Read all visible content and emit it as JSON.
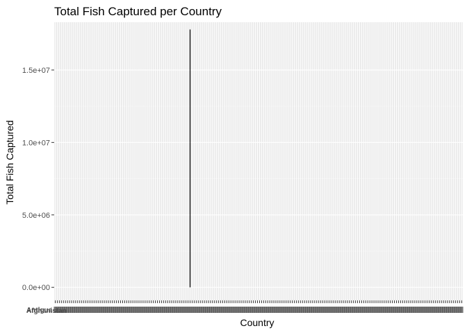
{
  "chart_data": {
    "type": "bar",
    "title": "Total Fish Captured per Country",
    "xlabel": "Country",
    "ylabel": "Total Fish Captured",
    "ylim": [
      -900000,
      18300000
    ],
    "y_ticks": [
      0,
      5000000,
      10000000,
      15000000
    ],
    "y_tick_labels": [
      "0.0e+00",
      "5.0e+06",
      "1.0e+07",
      "1.5e+07"
    ],
    "grid": true,
    "legend": "none",
    "category_count": 200,
    "visible_category_labels": [
      "Afghanistan",
      "Antigua"
    ],
    "highlighted_bar": {
      "category_index": 66,
      "value": 17800000
    },
    "colors": {
      "panel_background": "#ebebeb",
      "grid_major": "#ffffff",
      "grid_minor": "#f5f5f5",
      "bar": "#000000",
      "tick": "#333333",
      "tick_text": "#4d4d4d"
    }
  }
}
